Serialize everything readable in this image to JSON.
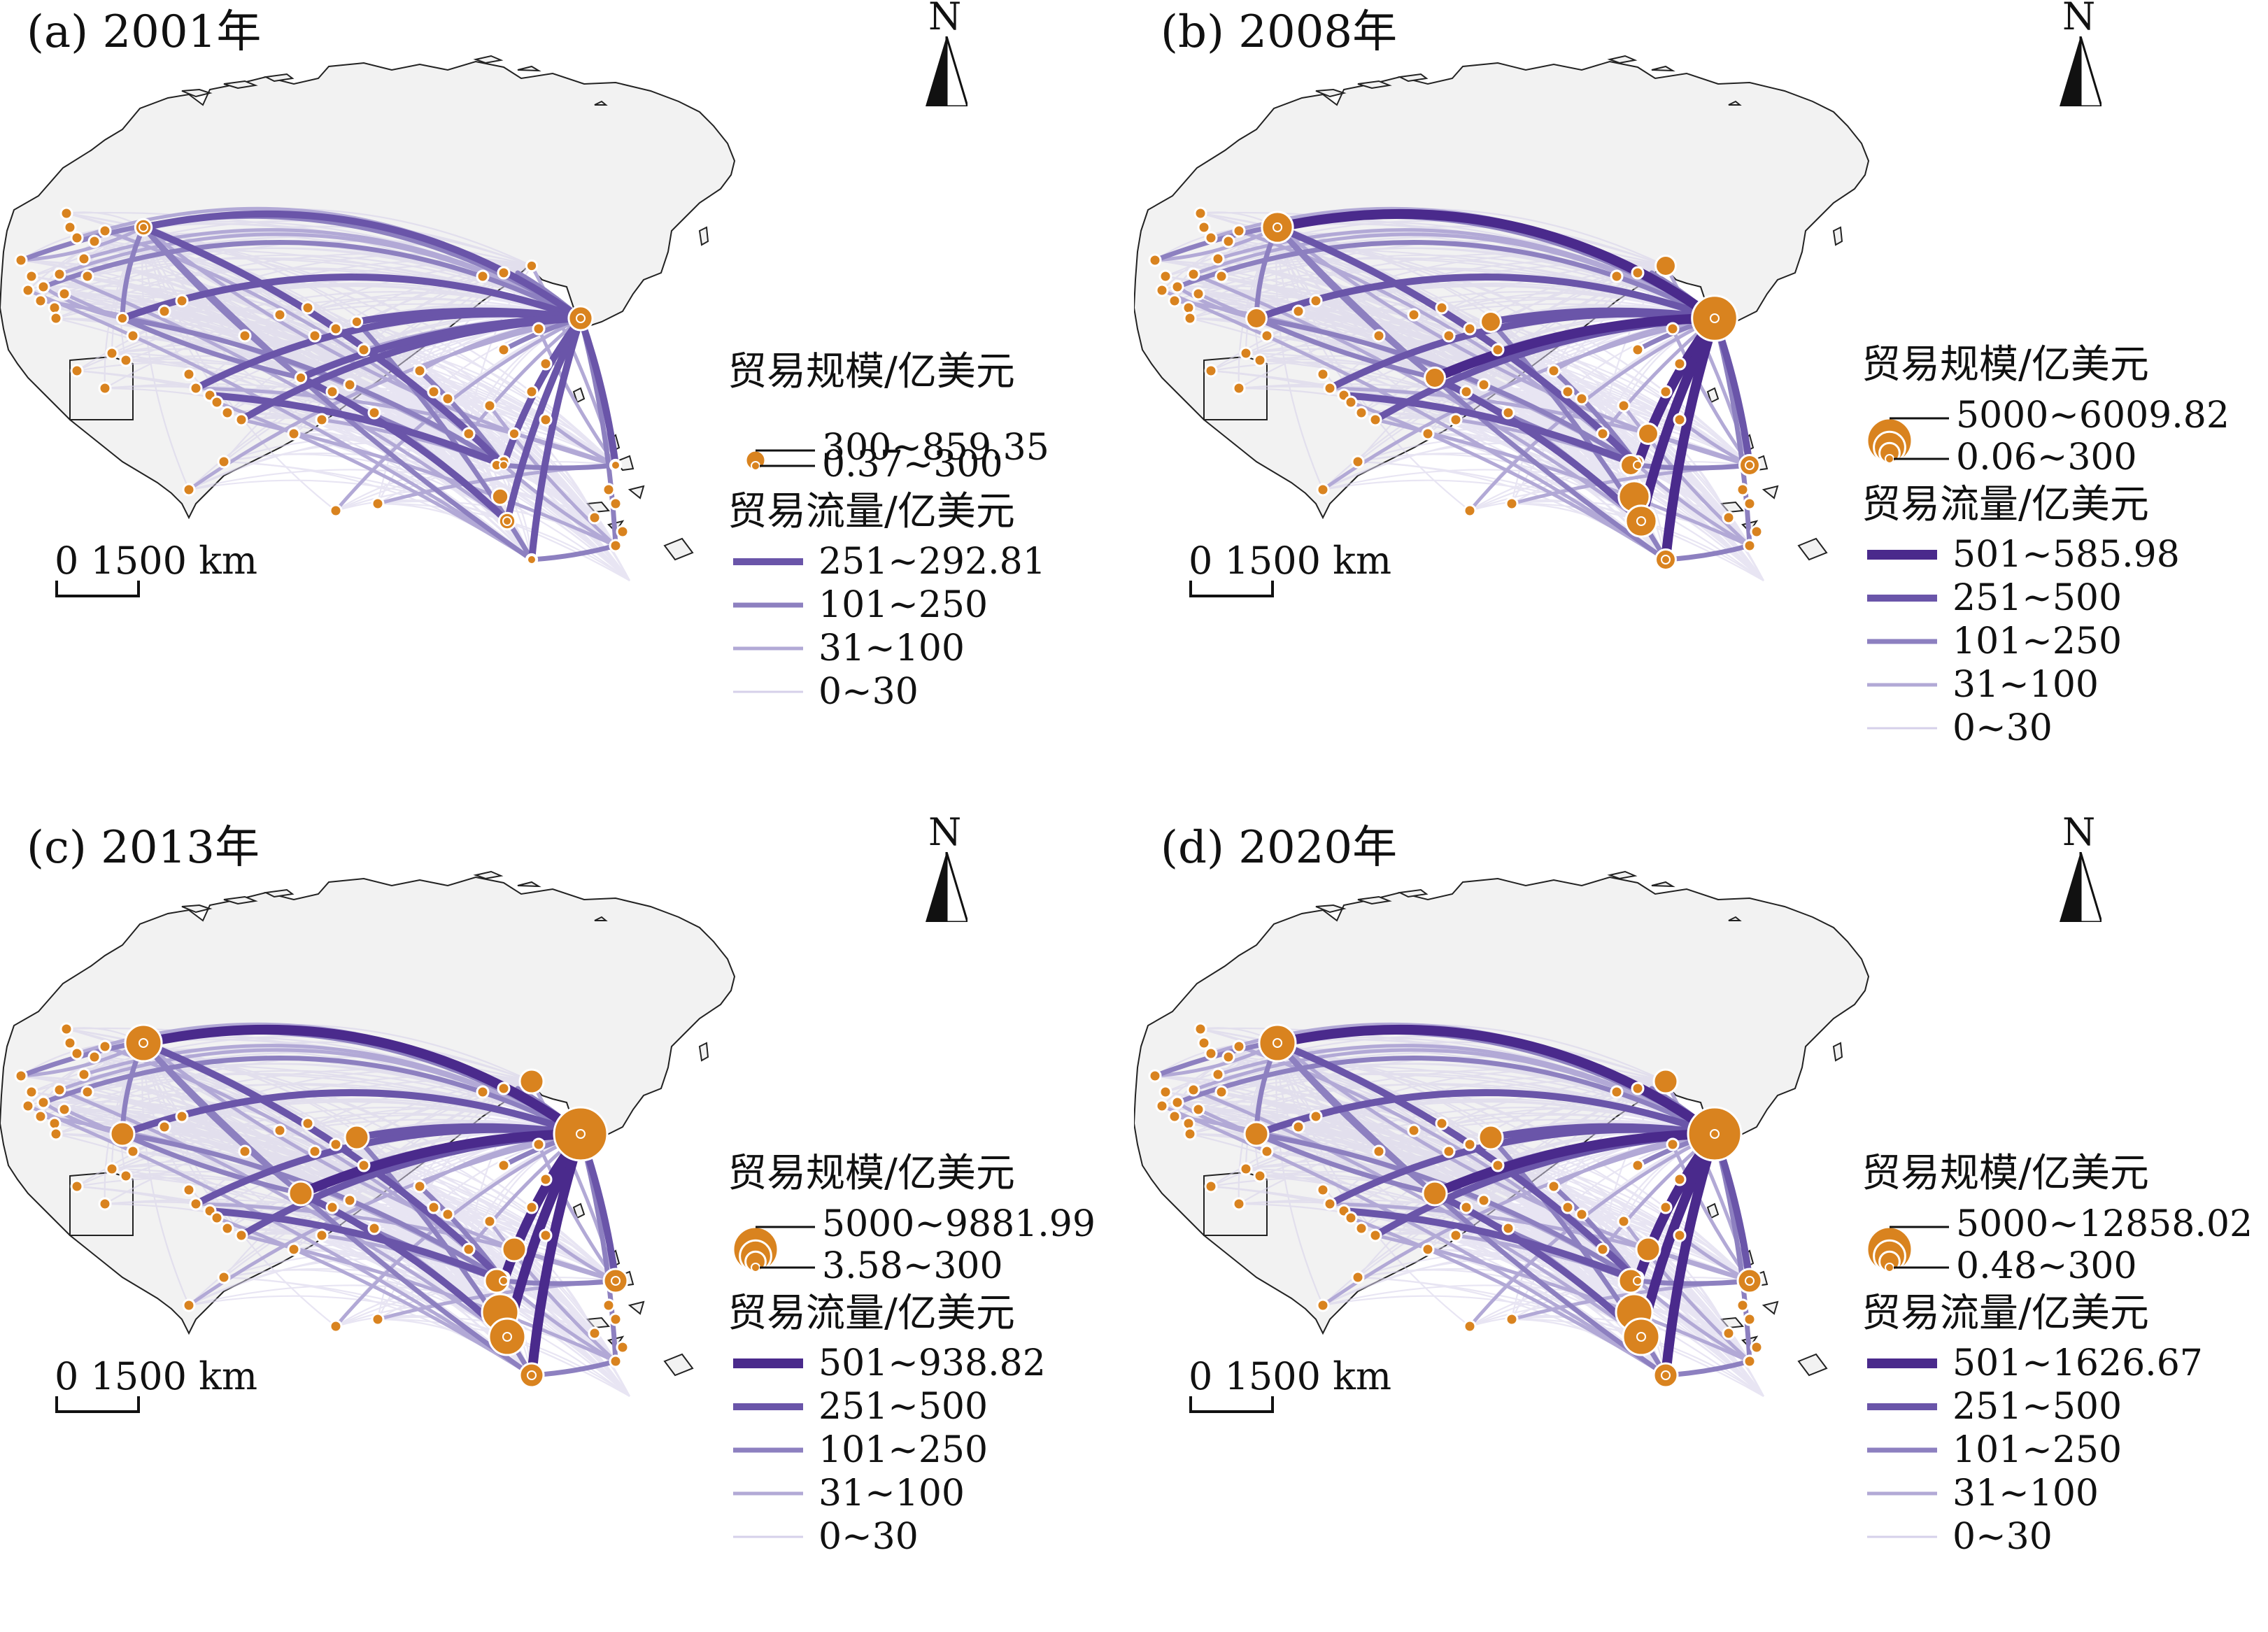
{
  "common": {
    "size_legend_title": "贸易规模/亿美元",
    "flow_legend_title": "贸易流量/亿美元",
    "scale_label": "0 1500 km",
    "north_label": "N"
  },
  "colors": {
    "land": "#f2f2f2",
    "coast": "#222222",
    "node": "#d9831f",
    "node_edge": "#ffffff",
    "flow_class_colors": [
      "#d6d0ea",
      "#b2a9d6",
      "#8d80c0",
      "#6a55a9",
      "#4a2a8c"
    ]
  },
  "panels": [
    {
      "title": "(a) 2001年",
      "size_classes": [
        "300~859.35",
        "0.37~300"
      ],
      "flow_classes": [
        "251~292.81",
        "101~250",
        "31~100",
        "0~30"
      ],
      "max_flow_class": 3,
      "node_scale": 0.45
    },
    {
      "title": "(b) 2008年",
      "size_classes": [
        "5000~6009.82",
        "0.06~300"
      ],
      "flow_classes": [
        "501~585.98",
        "251~500",
        "101~250",
        "31~100",
        "0~30"
      ],
      "max_flow_class": 4,
      "node_scale": 0.85
    },
    {
      "title": "(c) 2013年",
      "size_classes": [
        "5000~9881.99",
        "3.58~300"
      ],
      "flow_classes": [
        "501~938.82",
        "251~500",
        "101~250",
        "31~100",
        "0~30"
      ],
      "max_flow_class": 4,
      "node_scale": 1.0
    },
    {
      "title": "(d) 2020年",
      "size_classes": [
        "5000~12858.02",
        "0.48~300"
      ],
      "flow_classes": [
        "501~1626.67",
        "251~500",
        "101~250",
        "31~100",
        "0~30"
      ],
      "max_flow_class": 4,
      "node_scale": 1.0
    }
  ]
}
